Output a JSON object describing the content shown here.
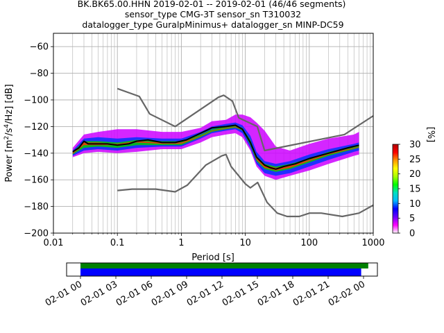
{
  "title_lines": [
    "BK.BK65.00.HHN   2019-02-01 -- 2019-02-01  (46/46 segments)",
    "sensor_type CMG-3T sensor_sn T310032",
    "datalogger_type GuralpMinimus+ datalogger_sn MINP-DC59"
  ],
  "colors": {
    "noise_models": "#666666",
    "mean_curve": "#000000",
    "coverage_data": "#008000",
    "coverage_used": "#0000ff",
    "grid": "#b0b0b0"
  },
  "chart_data": {
    "type": "heatmap",
    "subtype": "probabilistic-power-spectral-density",
    "xlabel": "Period [s]",
    "ylabel_parts": {
      "pre": "Power [m",
      "sup1": "2",
      "mid": "/s",
      "sup2": "4",
      "post": "/Hz] [dB]"
    },
    "x_scale": "log",
    "xlim": [
      0.01,
      1000
    ],
    "ylim": [
      -200,
      -50
    ],
    "x_tick_values": [
      0.01,
      0.1,
      1,
      10,
      100,
      1000
    ],
    "x_tick_labels": [
      "0.01",
      "0.1",
      "1",
      "10",
      "100",
      "1000"
    ],
    "y_tick_values": [
      -200,
      -180,
      -160,
      -140,
      -120,
      -100,
      -80,
      -60
    ],
    "y_tick_labels": [
      "−200",
      "−180",
      "−160",
      "−140",
      "−120",
      "−100",
      "−80",
      "−60"
    ],
    "grid": true,
    "mean_curve": {
      "periods": [
        0.02,
        0.025,
        0.03,
        0.035,
        0.05,
        0.07,
        0.1,
        0.15,
        0.2,
        0.3,
        0.5,
        0.8,
        1.2,
        2,
        3,
        5,
        7,
        9,
        12,
        15,
        20,
        25,
        30,
        40,
        60,
        100,
        200,
        400,
        600
      ],
      "power": [
        -139,
        -136,
        -131,
        -133,
        -133,
        -133,
        -134,
        -133,
        -131,
        -130,
        -132,
        -132,
        -130,
        -125,
        -121,
        -120,
        -119,
        -122,
        -132,
        -143,
        -149,
        -151,
        -152,
        -150,
        -148,
        -144,
        -140,
        -136,
        -134
      ]
    },
    "pdf_bands": [
      {
        "name": "p-max-100",
        "color": "#cc00ff",
        "periods": [
          0.02,
          0.03,
          0.05,
          0.1,
          0.2,
          0.5,
          1,
          2,
          3,
          5,
          7,
          9,
          12,
          15,
          20,
          30,
          50,
          100,
          200,
          500,
          600
        ],
        "upper": [
          -136,
          -126,
          -124,
          -122,
          -122,
          -124,
          -124,
          -121,
          -116,
          -115,
          -111,
          -111,
          -113,
          -117,
          -123,
          -135,
          -138,
          -133,
          -129,
          -126,
          -124
        ],
        "lower": [
          -143,
          -140,
          -139,
          -140,
          -139,
          -137,
          -137,
          -132,
          -128,
          -126,
          -125,
          -128,
          -138,
          -150,
          -157,
          -160,
          -157,
          -153,
          -148,
          -142,
          -141
        ]
      },
      {
        "name": "p-15",
        "color": "#0033ff",
        "periods": [
          0.02,
          0.03,
          0.05,
          0.1,
          0.2,
          0.5,
          1,
          2,
          3,
          5,
          7,
          9,
          12,
          15,
          20,
          30,
          50,
          100,
          200,
          500,
          600
        ],
        "upper": [
          -138,
          -129,
          -128,
          -129,
          -128,
          -129,
          -129,
          -124,
          -120,
          -118,
          -117,
          -119,
          -127,
          -139,
          -146,
          -148,
          -146,
          -141,
          -137,
          -133,
          -132
        ],
        "lower": [
          -142,
          -138,
          -137,
          -138,
          -136,
          -135,
          -135,
          -129,
          -125,
          -123,
          -122,
          -125,
          -136,
          -148,
          -155,
          -157,
          -155,
          -150,
          -145,
          -139,
          -138
        ]
      },
      {
        "name": "p-25",
        "color": "#00cc00",
        "periods": [
          0.02,
          0.03,
          0.05,
          0.1,
          0.2,
          0.5,
          1,
          2,
          3,
          5,
          7,
          9,
          12,
          15,
          20,
          30,
          50,
          100,
          200,
          500,
          600
        ],
        "upper": [
          -139,
          -131,
          -131,
          -132,
          -130,
          -131,
          -131,
          -126,
          -122,
          -120,
          -119,
          -121,
          -130,
          -142,
          -148,
          -150,
          -148,
          -144,
          -139,
          -135,
          -134
        ],
        "lower": [
          -141,
          -136,
          -135,
          -136,
          -134,
          -134,
          -134,
          -128,
          -124,
          -122,
          -121,
          -123,
          -134,
          -146,
          -152,
          -154,
          -152,
          -147,
          -142,
          -137,
          -136
        ]
      },
      {
        "name": "p-30",
        "color": "#ff3300",
        "periods": [
          0.02,
          0.03,
          0.05,
          0.1,
          0.2,
          0.5,
          1,
          2,
          3,
          5,
          7,
          9,
          12,
          15,
          20,
          30,
          50,
          100,
          200,
          500,
          600
        ],
        "upper": [
          -139.5,
          -132,
          -132,
          -133,
          -131,
          -132,
          -132,
          -127,
          -123,
          -121,
          -120,
          -122,
          -131,
          -143,
          -149,
          -151,
          -149,
          -145,
          -140,
          -136,
          -135
        ],
        "lower": [
          -140.5,
          -134,
          -134,
          -134,
          -132,
          -133,
          -133,
          -127.5,
          -123.5,
          -121.5,
          -120.5,
          -122.5,
          -133,
          -145,
          -151,
          -153,
          -151,
          -146,
          -141,
          -136.5,
          -135.5
        ]
      }
    ],
    "noise_models": [
      {
        "name": "NHNM",
        "periods": [
          0.1,
          0.22,
          0.32,
          0.8,
          3.8,
          4.6,
          6.3,
          7.9,
          15.4,
          20,
          354.8,
          1000
        ],
        "power": [
          -91.5,
          -97.4,
          -110.5,
          -120,
          -98,
          -96.5,
          -101,
          -113.5,
          -120,
          -138,
          -126,
          -112
        ]
      },
      {
        "name": "NLNM",
        "periods": [
          0.1,
          0.17,
          0.4,
          0.8,
          1.24,
          2.4,
          4.3,
          5,
          6,
          10,
          12,
          15.6,
          21.9,
          31.6,
          45,
          70,
          101,
          154,
          328,
          600,
          1000
        ],
        "power": [
          -168,
          -167,
          -167,
          -169,
          -164,
          -149,
          -142,
          -141,
          -150,
          -163,
          -166,
          -162,
          -177,
          -185,
          -187.5,
          -187.5,
          -185,
          -185,
          -187.5,
          -185,
          -179
        ]
      }
    ],
    "colorbar": {
      "label": "[%]",
      "range": [
        0,
        30
      ],
      "tick_values": [
        0,
        5,
        10,
        15,
        20,
        25,
        30
      ],
      "tick_labels": [
        "0",
        "5",
        "10",
        "15",
        "20",
        "25",
        "30"
      ],
      "stops": [
        "#ffffff",
        "#ff00ff",
        "#6a00ff",
        "#0000ff",
        "#00b8ff",
        "#00e0c0",
        "#00ff00",
        "#a8ff00",
        "#ffff00",
        "#ff9900",
        "#ff0000",
        "#b00000"
      ]
    },
    "coverage": {
      "range_hours": [
        0,
        25.5
      ],
      "tick_hours": [
        0,
        3,
        6,
        9,
        12,
        15,
        18,
        21,
        24
      ],
      "tick_labels": [
        "02-01 00",
        "02-01 03",
        "02-01 06",
        "02-01 09",
        "02-01 12",
        "02-01 15",
        "02-01 18",
        "02-01 21",
        "02-02 00"
      ],
      "data_span_hours": [
        0,
        24.4
      ],
      "used_span_hours": [
        0,
        23.8
      ]
    }
  }
}
